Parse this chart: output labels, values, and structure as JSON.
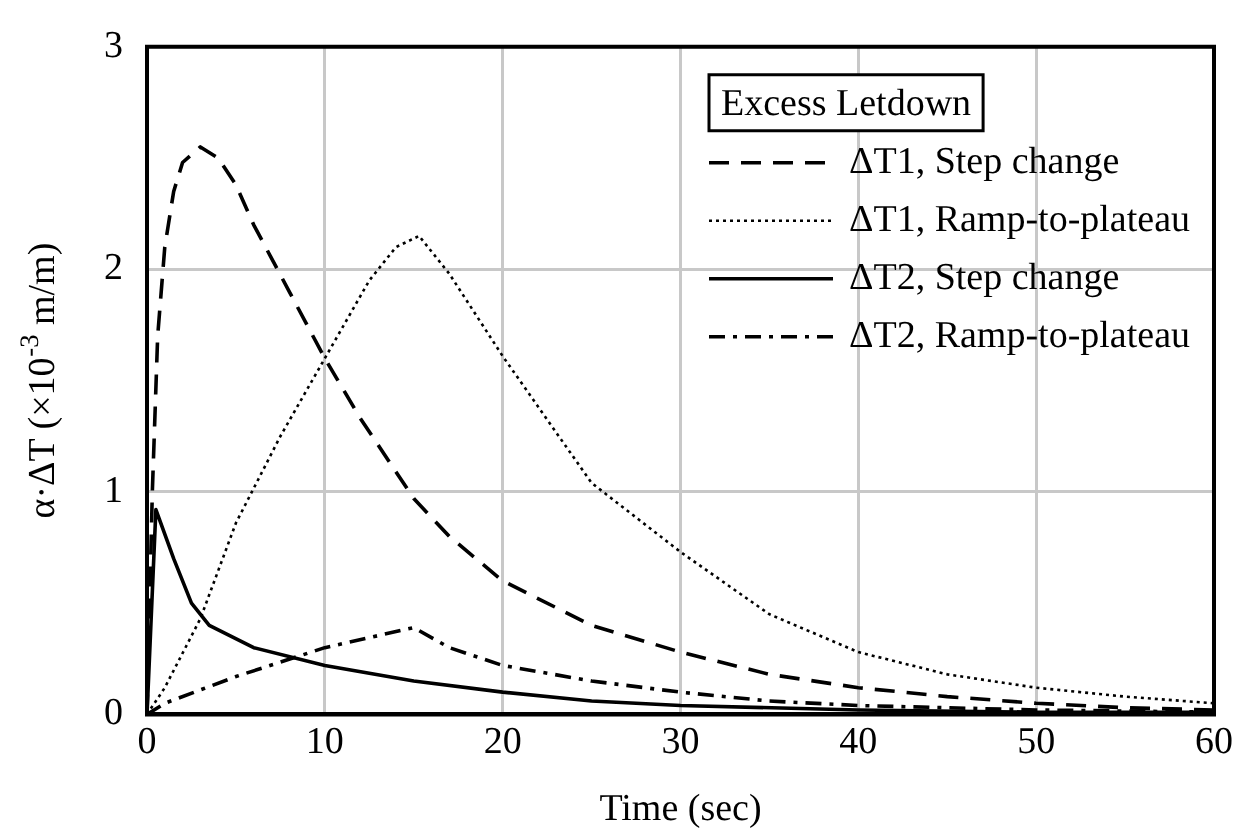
{
  "chart_data": {
    "type": "line",
    "xlabel": "Time (sec)",
    "ylabel": "α·ΔT (×10$^{-3}$ m/m)",
    "legend_title": "Excess Letdown",
    "xlim": [
      0,
      60
    ],
    "xticks": [
      0,
      10,
      20,
      30,
      40,
      50,
      60
    ],
    "ylim": [
      0,
      3
    ],
    "yticks": [
      0,
      1,
      2,
      3
    ],
    "grid": true,
    "legend": "top right",
    "marker": "none",
    "series": [
      {
        "name": "ΔT1, Step change",
        "color": "#000000",
        "line_style": "dashed",
        "x": [
          0,
          0.3,
          0.6,
          1,
          1.5,
          2,
          3,
          4,
          5,
          6,
          8,
          10,
          12,
          15,
          17,
          20,
          25,
          30,
          35,
          40,
          45,
          50,
          55,
          60
        ],
        "values": [
          0,
          1.0,
          1.7,
          2.1,
          2.35,
          2.48,
          2.55,
          2.5,
          2.38,
          2.2,
          1.9,
          1.6,
          1.33,
          0.97,
          0.8,
          0.6,
          0.4,
          0.28,
          0.18,
          0.12,
          0.08,
          0.05,
          0.03,
          0.02
        ]
      },
      {
        "name": "ΔT1, Ramp-to-plateau",
        "color": "#000000",
        "line_style": "dotted",
        "x": [
          0,
          1,
          3,
          5,
          7.5,
          10,
          12.5,
          14,
          15.3,
          17,
          20,
          25,
          30,
          35,
          40,
          45,
          50,
          55,
          60
        ],
        "values": [
          0,
          0.12,
          0.43,
          0.86,
          1.25,
          1.6,
          1.95,
          2.1,
          2.15,
          1.98,
          1.61,
          1.04,
          0.73,
          0.45,
          0.28,
          0.18,
          0.12,
          0.08,
          0.05
        ]
      },
      {
        "name": "ΔT2, Step change",
        "color": "#000000",
        "line_style": "solid",
        "x": [
          0,
          0.5,
          1.5,
          2.5,
          3.5,
          6,
          10,
          15,
          20,
          25,
          30,
          40,
          50,
          60
        ],
        "values": [
          0,
          0.92,
          0.7,
          0.5,
          0.4,
          0.3,
          0.22,
          0.15,
          0.1,
          0.06,
          0.04,
          0.02,
          0.01,
          0.01
        ]
      },
      {
        "name": "ΔT2, Ramp-to-plateau",
        "color": "#000000",
        "line_style": "dashdot",
        "x": [
          0,
          1,
          5,
          10,
          15,
          17,
          20,
          25,
          30,
          35,
          40,
          50,
          60
        ],
        "values": [
          0,
          0.05,
          0.17,
          0.3,
          0.39,
          0.3,
          0.22,
          0.15,
          0.1,
          0.06,
          0.04,
          0.02,
          0.01
        ]
      }
    ]
  }
}
